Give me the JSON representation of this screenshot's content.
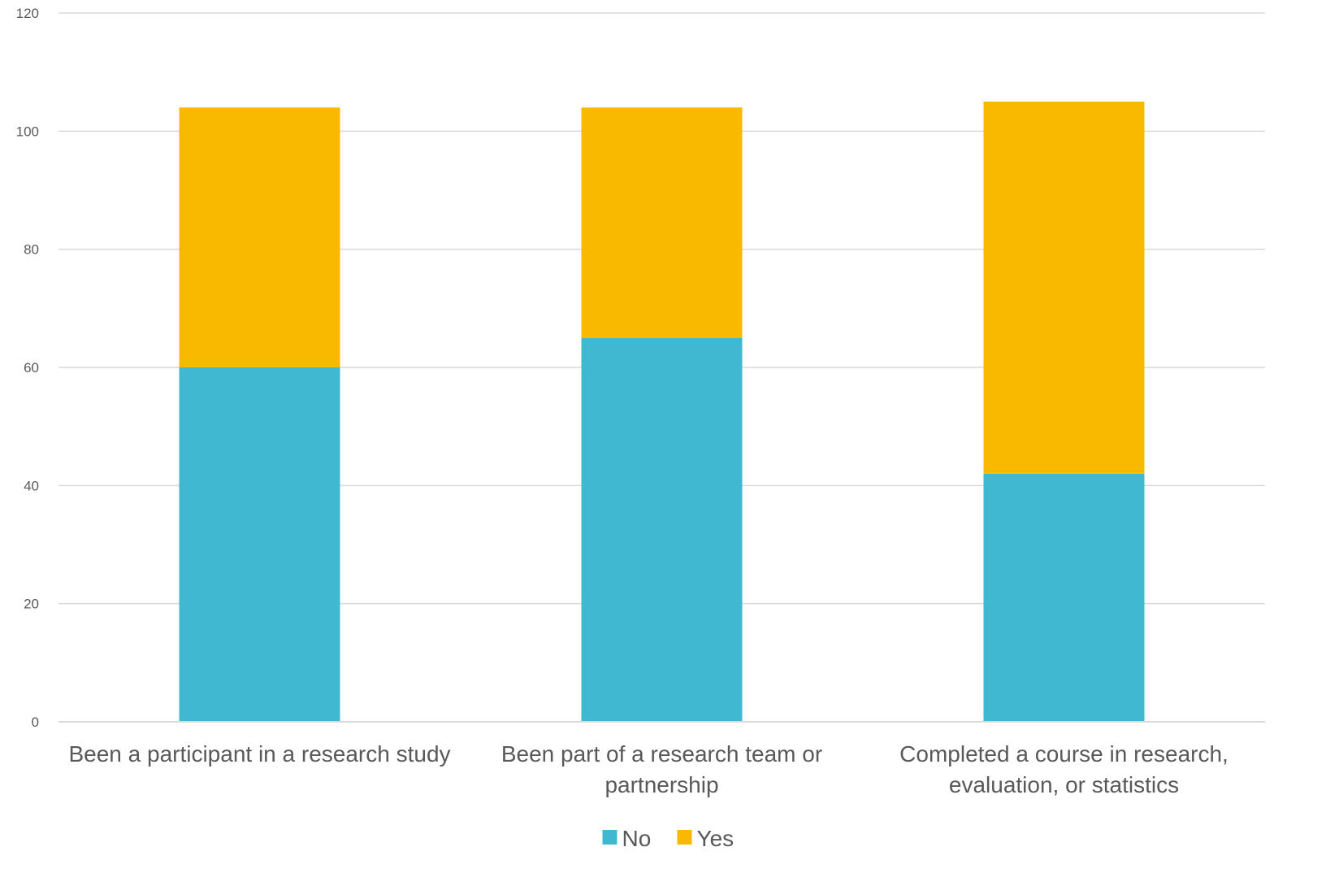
{
  "chart_data": {
    "type": "bar",
    "stacked": true,
    "title": "",
    "xlabel": "",
    "ylabel": "",
    "categories": [
      [
        "Been a participant in a research study"
      ],
      [
        "Been part of a research team or",
        "partnership"
      ],
      [
        "Completed a course in research,",
        "evaluation, or statistics"
      ]
    ],
    "series": [
      {
        "name": "No",
        "color": "#41B8D2",
        "values": [
          60,
          65,
          42
        ]
      },
      {
        "name": "Yes",
        "color": "#F8B900",
        "values": [
          44,
          39,
          63
        ]
      }
    ],
    "ylim": [
      0,
      120
    ],
    "yticks": [
      0,
      20,
      40,
      60,
      80,
      100,
      120
    ],
    "grid": true,
    "legend_position": "bottom"
  }
}
